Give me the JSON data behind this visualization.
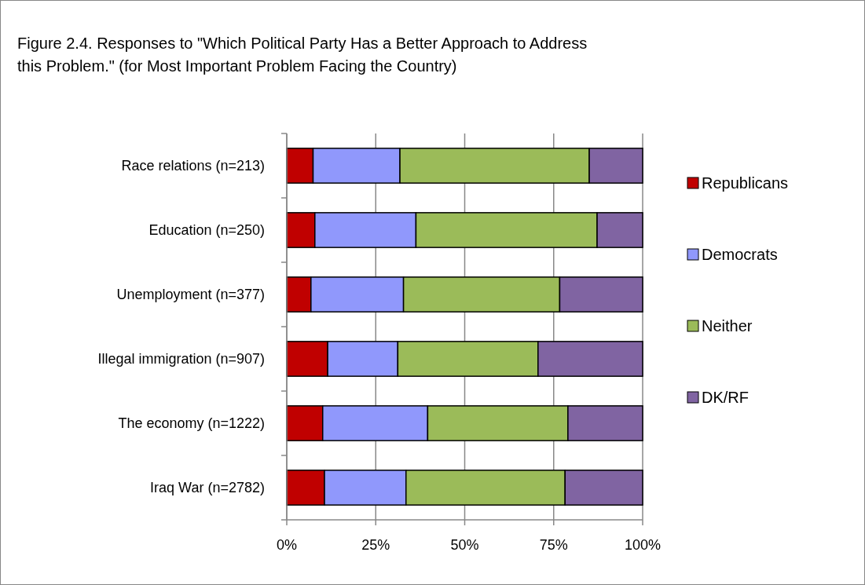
{
  "chart_data": {
    "type": "bar",
    "orientation": "horizontal",
    "stacked": true,
    "title": "Figure 2.4. Responses to \"Which Political Party Has a Better Approach to Address this Problem.\" (for Most Important Problem Facing the Country)",
    "categories": [
      "Race relations (n=213)",
      "Education (n=250)",
      "Unemployment (n=377)",
      "Illegal immigration (n=907)",
      "The economy (n=1222)",
      "Iraq War (n=2782)"
    ],
    "series": [
      {
        "name": "Republicans",
        "color": "#c00000",
        "values": [
          7.4,
          7.9,
          6.8,
          11.5,
          10.1,
          10.6
        ]
      },
      {
        "name": "Democrats",
        "color": "#9098fc",
        "values": [
          24.4,
          28.4,
          26.0,
          19.7,
          29.5,
          22.9
        ]
      },
      {
        "name": "Neither",
        "color": "#9bbb59",
        "values": [
          53.2,
          50.9,
          43.9,
          39.4,
          39.4,
          44.7
        ]
      },
      {
        "name": "DK/RF",
        "color": "#8064a2",
        "values": [
          15.0,
          12.8,
          23.3,
          29.4,
          21.0,
          21.8
        ]
      }
    ],
    "xlim": [
      0,
      100
    ],
    "xticks": [
      {
        "value": 0,
        "label": "0%"
      },
      {
        "value": 25,
        "label": "25%"
      },
      {
        "value": 50,
        "label": "50%"
      },
      {
        "value": 75,
        "label": "75%"
      },
      {
        "value": 100,
        "label": "100%"
      }
    ],
    "grid": "x",
    "legend": "right"
  }
}
